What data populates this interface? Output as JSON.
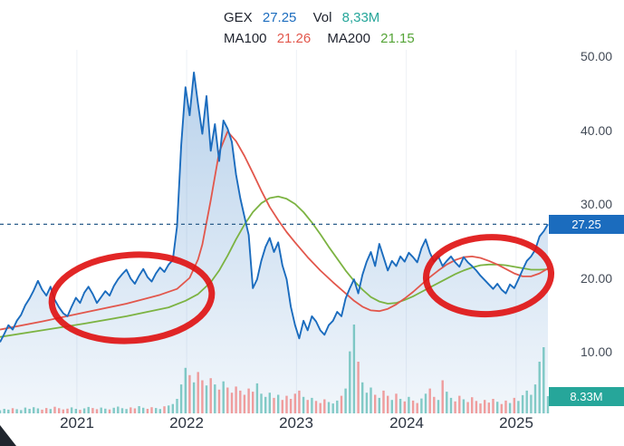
{
  "legend": {
    "ticker": "GEX",
    "price": "27.25",
    "vol_label": "Vol",
    "vol_value": "8,33M",
    "ma100_label": "MA100",
    "ma100_value": "21.26",
    "ma200_label": "MA200",
    "ma200_value": "21.15"
  },
  "colors": {
    "price_line": "#1b6cbe",
    "area_top": "rgba(27,108,190,0.30)",
    "area_bottom": "rgba(27,108,190,0.06)",
    "ma100": "#e2574c",
    "ma200": "#7cb342",
    "vol_up": "rgba(38,166,154,0.55)",
    "vol_down": "rgba(239,83,80,0.55)",
    "dashed_line": "#2a5d8a",
    "price_tag_bg": "#1b6cbe",
    "vol_tag_bg": "#26a69a",
    "annotation_red": "#e01414",
    "gridline": "#eef1f6"
  },
  "y_axis": {
    "ticks": [
      {
        "label": "50.00",
        "value": 50
      },
      {
        "label": "40.00",
        "value": 40
      },
      {
        "label": "30.00",
        "value": 30
      },
      {
        "label": "20.00",
        "value": 20
      },
      {
        "label": "10.00",
        "value": 10
      }
    ],
    "price_tag": {
      "label": "27.25",
      "value": 27.25
    },
    "volume_tag": {
      "label": "8.33M",
      "value_m": 8.33
    }
  },
  "x_axis": {
    "ticks": [
      {
        "label": "2021",
        "year": 2021
      },
      {
        "label": "2022",
        "year": 2022
      },
      {
        "label": "2023",
        "year": 2023
      },
      {
        "label": "2024",
        "year": 2024
      },
      {
        "label": "2025",
        "year": 2025
      }
    ]
  },
  "chart_data": {
    "type": "line",
    "title": "GEX price with MA100 and MA200 overlays, volume bars, and two hand-drawn red ellipse annotations",
    "x_start": 2020.3,
    "x_end": 2025.29,
    "ylim": [
      8,
      52
    ],
    "last_price": 27.25,
    "last_volume_m": 8.33,
    "series_names": [
      "GEX",
      "MA100",
      "MA200",
      "Volume"
    ],
    "price": [
      11.3,
      12.4,
      13.6,
      13.0,
      14.2,
      15.0,
      16.3,
      17.2,
      18.3,
      19.6,
      18.4,
      17.6,
      18.8,
      17.0,
      16.0,
      15.2,
      14.8,
      16.1,
      17.3,
      16.6,
      18.0,
      18.8,
      17.8,
      16.6,
      17.4,
      18.2,
      17.6,
      18.9,
      19.8,
      20.5,
      21.1,
      19.9,
      19.2,
      20.3,
      21.2,
      20.1,
      19.5,
      20.6,
      21.4,
      20.8,
      21.8,
      22.4,
      27.0,
      38.0,
      45.8,
      42.0,
      47.8,
      43.5,
      39.5,
      44.6,
      37.2,
      40.8,
      35.8,
      41.3,
      40.2,
      38.4,
      34.0,
      30.8,
      28.3,
      25.8,
      18.6,
      19.8,
      22.3,
      24.2,
      25.4,
      23.5,
      24.8,
      21.7,
      19.8,
      16.1,
      13.6,
      11.8,
      14.2,
      12.9,
      14.8,
      14.1,
      12.9,
      12.3,
      13.6,
      14.2,
      15.4,
      14.8,
      17.2,
      18.6,
      19.8,
      17.9,
      20.4,
      22.2,
      23.5,
      21.6,
      24.6,
      22.8,
      21.0,
      22.3,
      21.6,
      22.9,
      22.2,
      23.4,
      22.8,
      22.1,
      24.0,
      25.2,
      23.4,
      22.2,
      22.9,
      21.6,
      22.3,
      22.9,
      22.1,
      21.5,
      22.8,
      22.1,
      21.6,
      21.0,
      20.3,
      19.7,
      19.1,
      18.5,
      19.2,
      18.4,
      17.9,
      19.1,
      18.6,
      19.8,
      21.1,
      22.3,
      22.9,
      23.8,
      25.6,
      26.3,
      27.25
    ],
    "ma100_keypoints": [
      [
        0,
        13.0
      ],
      [
        10,
        14.1
      ],
      [
        20,
        15.3
      ],
      [
        30,
        16.5
      ],
      [
        38,
        17.7
      ],
      [
        42,
        18.5
      ],
      [
        45,
        20.0
      ],
      [
        47,
        22.5
      ],
      [
        48,
        24.5
      ],
      [
        50,
        30.5
      ],
      [
        52,
        37.0
      ],
      [
        54,
        39.8
      ],
      [
        56,
        38.5
      ],
      [
        58,
        36.5
      ],
      [
        60,
        34.2
      ],
      [
        62,
        31.8
      ],
      [
        64,
        29.6
      ],
      [
        66,
        27.8
      ],
      [
        68,
        26.2
      ],
      [
        70,
        24.8
      ],
      [
        73,
        22.8
      ],
      [
        76,
        21.0
      ],
      [
        79,
        19.4
      ],
      [
        82,
        17.9
      ],
      [
        84,
        16.9
      ],
      [
        86,
        16.1
      ],
      [
        88,
        15.6
      ],
      [
        90,
        15.5
      ],
      [
        92,
        15.8
      ],
      [
        94,
        16.4
      ],
      [
        96,
        17.2
      ],
      [
        98,
        18.1
      ],
      [
        100,
        19.1
      ],
      [
        102,
        20.1
      ],
      [
        104,
        21.0
      ],
      [
        106,
        21.8
      ],
      [
        108,
        22.4
      ],
      [
        110,
        22.8
      ],
      [
        112,
        22.9
      ],
      [
        114,
        22.7
      ],
      [
        116,
        22.3
      ],
      [
        118,
        21.8
      ],
      [
        120,
        21.2
      ],
      [
        122,
        20.6
      ],
      [
        124,
        20.2
      ],
      [
        126,
        20.2
      ],
      [
        128,
        20.6
      ],
      [
        130,
        21.26
      ]
    ],
    "ma200_keypoints": [
      [
        0,
        12.0
      ],
      [
        10,
        12.9
      ],
      [
        20,
        13.8
      ],
      [
        30,
        14.8
      ],
      [
        40,
        16.0
      ],
      [
        44,
        16.9
      ],
      [
        47,
        17.8
      ],
      [
        50,
        19.4
      ],
      [
        52,
        21.0
      ],
      [
        54,
        23.0
      ],
      [
        56,
        25.2
      ],
      [
        58,
        27.2
      ],
      [
        60,
        28.9
      ],
      [
        62,
        30.1
      ],
      [
        64,
        30.8
      ],
      [
        66,
        31.0
      ],
      [
        68,
        30.7
      ],
      [
        70,
        30.0
      ],
      [
        72,
        28.9
      ],
      [
        74,
        27.5
      ],
      [
        76,
        25.9
      ],
      [
        78,
        24.2
      ],
      [
        80,
        22.6
      ],
      [
        82,
        21.0
      ],
      [
        84,
        19.6
      ],
      [
        86,
        18.4
      ],
      [
        88,
        17.4
      ],
      [
        90,
        16.8
      ],
      [
        92,
        16.5
      ],
      [
        94,
        16.6
      ],
      [
        96,
        17.0
      ],
      [
        98,
        17.5
      ],
      [
        100,
        18.1
      ],
      [
        102,
        18.7
      ],
      [
        104,
        19.3
      ],
      [
        106,
        19.9
      ],
      [
        108,
        20.5
      ],
      [
        110,
        21.0
      ],
      [
        112,
        21.4
      ],
      [
        114,
        21.7
      ],
      [
        116,
        21.8
      ],
      [
        118,
        21.8
      ],
      [
        120,
        21.7
      ],
      [
        122,
        21.5
      ],
      [
        124,
        21.3
      ],
      [
        126,
        21.1
      ],
      [
        128,
        21.1
      ],
      [
        130,
        21.15
      ]
    ],
    "volume_m": [
      1.5,
      2.2,
      1.8,
      2.5,
      2.0,
      1.6,
      2.8,
      2.2,
      3.0,
      2.4,
      1.8,
      2.6,
      2.1,
      3.2,
      2.5,
      1.9,
      2.3,
      2.9,
      2.2,
      1.7,
      2.4,
      3.1,
      2.6,
      2.0,
      2.8,
      2.3,
      1.9,
      2.7,
      3.3,
      2.5,
      2.1,
      2.9,
      2.4,
      3.5,
      2.7,
      2.2,
      3.0,
      2.6,
      2.1,
      3.4,
      3.8,
      4.5,
      7.0,
      14.0,
      22.0,
      18.5,
      15.0,
      20.0,
      16.0,
      13.5,
      17.0,
      14.0,
      11.5,
      15.5,
      12.5,
      10.0,
      13.0,
      11.0,
      9.0,
      12.0,
      10.5,
      14.5,
      9.5,
      8.0,
      10.0,
      7.5,
      9.0,
      6.5,
      8.5,
      7.0,
      9.5,
      11.0,
      8.0,
      6.5,
      7.5,
      6.0,
      5.0,
      6.8,
      5.5,
      4.8,
      6.2,
      8.5,
      12.0,
      30.0,
      43.0,
      25.0,
      15.0,
      10.0,
      12.5,
      9.0,
      7.5,
      11.0,
      8.5,
      6.5,
      9.5,
      7.0,
      5.8,
      8.0,
      6.2,
      5.0,
      7.2,
      9.5,
      12.0,
      8.0,
      6.5,
      16.0,
      10.5,
      7.5,
      5.8,
      8.5,
      6.8,
      5.5,
      7.8,
      6.0,
      4.8,
      6.5,
      5.2,
      7.0,
      5.6,
      4.5,
      6.2,
      5.0,
      7.5,
      6.0,
      8.8,
      11.0,
      9.0,
      14.0,
      25.0,
      32.0,
      8.33
    ],
    "annotations": {
      "ellipses": [
        {
          "center_year": 2021.5,
          "center_price": 17.3,
          "rx_years": 0.73,
          "ry_price": 5.8,
          "rotate_deg": -4
        },
        {
          "center_year": 2024.75,
          "center_price": 20.3,
          "rx_years": 0.57,
          "ry_price": 5.2,
          "rotate_deg": -3
        }
      ]
    }
  }
}
